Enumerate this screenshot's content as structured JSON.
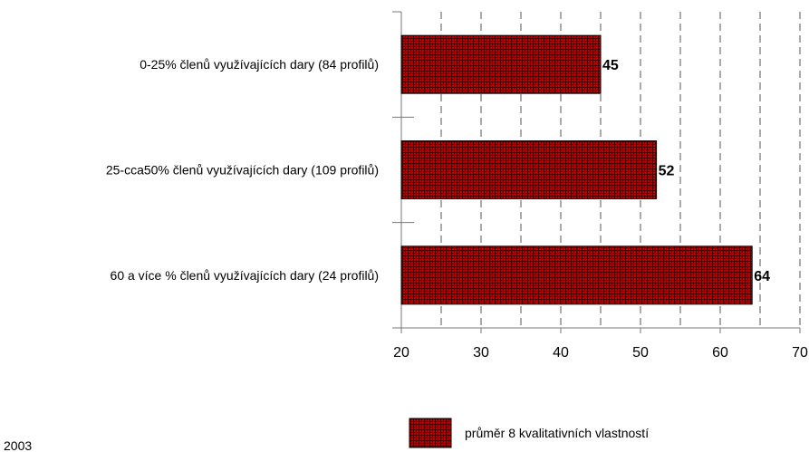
{
  "chart_data": {
    "type": "bar",
    "orientation": "horizontal",
    "categories": [
      "0-25% členů využívajících dary (84 profilů)",
      "25-cca50% členů využívajících dary (109 profilů)",
      "60 a více % členů využívajících dary (24 profilů)"
    ],
    "series": [
      {
        "name": "průměr 8 kvalitativních vlastností",
        "values": [
          45,
          52,
          64
        ],
        "color": "#c00000"
      }
    ],
    "data_labels": [
      "45",
      "52",
      "64"
    ],
    "xlim": [
      20,
      70
    ],
    "x_ticks": [
      20,
      30,
      40,
      50,
      60,
      70
    ],
    "x_tick_labels": [
      "20",
      "30",
      "40",
      "50",
      "60",
      "70"
    ],
    "grid": "vertical dashed",
    "legend_position": "bottom-right",
    "title": "",
    "xlabel": "",
    "ylabel": ""
  },
  "footnote": "2003"
}
